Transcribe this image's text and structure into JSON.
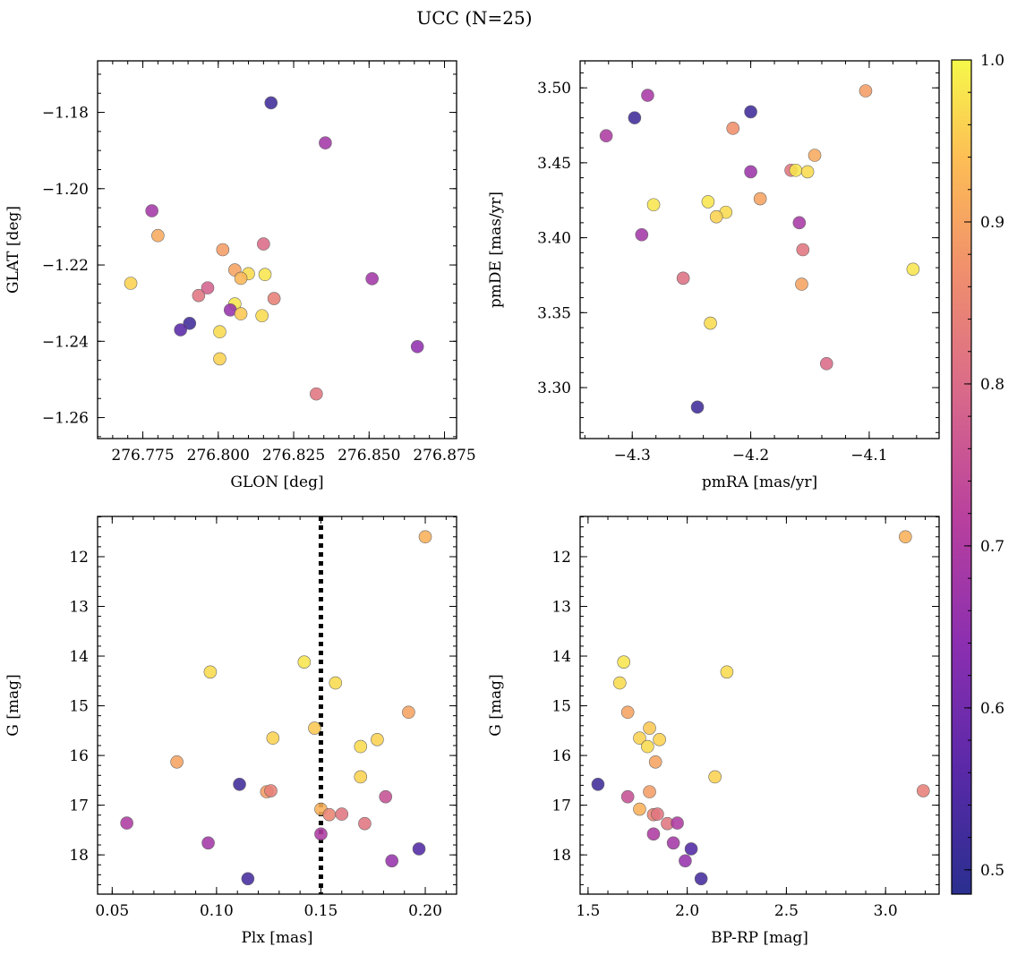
{
  "chart_data": {
    "suptitle": "UCC (N=25)",
    "colorbar": {
      "min": 0.485,
      "max": 1.0,
      "ticks": [
        0.5,
        0.6,
        0.7,
        0.8,
        0.9,
        1.0
      ],
      "tick_labels": [
        "0.5",
        "0.6",
        "0.7",
        "0.8",
        "0.9",
        "1.0"
      ],
      "colormap": "plasma"
    },
    "panels": [
      {
        "type": "scatter",
        "xlabel": "GLON [deg]",
        "ylabel": "GLAT [deg]",
        "xlim": [
          276.76,
          276.879
        ],
        "ylim": [
          -1.2655,
          -1.1665
        ],
        "y_inverted": false,
        "xticks": [
          276.775,
          276.8,
          276.825,
          276.85,
          276.875
        ],
        "xtick_labels": [
          "276.775",
          "276.800",
          "276.825",
          "276.850",
          "276.875"
        ],
        "yticks": [
          -1.26,
          -1.24,
          -1.22,
          -1.2,
          -1.18
        ],
        "ytick_labels": [
          "−1.26",
          "−1.24",
          "−1.22",
          "−1.20",
          "−1.18"
        ],
        "x_minor_step": 0.005,
        "y_minor_step": 0.005,
        "vline": null,
        "points": [
          {
            "x": 276.8175,
            "y": -1.1775,
            "c": 0.52
          },
          {
            "x": 276.8355,
            "y": -1.188,
            "c": 0.68
          },
          {
            "x": 276.778,
            "y": -1.2058,
            "c": 0.68
          },
          {
            "x": 276.78,
            "y": -1.2123,
            "c": 0.91
          },
          {
            "x": 276.8015,
            "y": -1.216,
            "c": 0.89
          },
          {
            "x": 276.815,
            "y": -1.2145,
            "c": 0.8
          },
          {
            "x": 276.8055,
            "y": -1.2213,
            "c": 0.9
          },
          {
            "x": 276.81,
            "y": -1.2223,
            "c": 0.97
          },
          {
            "x": 276.8075,
            "y": -1.2235,
            "c": 0.93
          },
          {
            "x": 276.8155,
            "y": -1.2225,
            "c": 0.98
          },
          {
            "x": 276.8185,
            "y": -1.2288,
            "c": 0.84
          },
          {
            "x": 276.771,
            "y": -1.2248,
            "c": 0.96
          },
          {
            "x": 276.7935,
            "y": -1.228,
            "c": 0.82
          },
          {
            "x": 276.7965,
            "y": -1.226,
            "c": 0.78
          },
          {
            "x": 276.8055,
            "y": -1.2302,
            "c": 0.98
          },
          {
            "x": 276.804,
            "y": -1.2318,
            "c": 0.66
          },
          {
            "x": 276.8075,
            "y": -1.2328,
            "c": 0.95
          },
          {
            "x": 276.8145,
            "y": -1.2333,
            "c": 0.97
          },
          {
            "x": 276.7905,
            "y": -1.2353,
            "c": 0.52
          },
          {
            "x": 276.7875,
            "y": -1.237,
            "c": 0.56
          },
          {
            "x": 276.8005,
            "y": -1.2375,
            "c": 0.97
          },
          {
            "x": 276.8005,
            "y": -1.2446,
            "c": 0.96
          },
          {
            "x": 276.851,
            "y": -1.2236,
            "c": 0.68
          },
          {
            "x": 276.866,
            "y": -1.2414,
            "c": 0.65
          },
          {
            "x": 276.8325,
            "y": -1.2538,
            "c": 0.82
          }
        ]
      },
      {
        "type": "scatter",
        "xlabel": "pmRA [mas/yr]",
        "ylabel": "pmDE [mas/yr]",
        "xlim": [
          -4.344,
          -4.041
        ],
        "ylim": [
          3.266,
          3.518
        ],
        "y_inverted": false,
        "xticks": [
          -4.3,
          -4.2,
          -4.1
        ],
        "xtick_labels": [
          "−4.3",
          "−4.2",
          "−4.1"
        ],
        "yticks": [
          3.3,
          3.35,
          3.4,
          3.45,
          3.5
        ],
        "ytick_labels": [
          "3.30",
          "3.35",
          "3.40",
          "3.45",
          "3.50"
        ],
        "x_minor_step": 0.02,
        "y_minor_step": 0.01,
        "vline": null,
        "points": [
          {
            "x": -4.322,
            "y": 3.468,
            "c": 0.7
          },
          {
            "x": -4.298,
            "y": 3.48,
            "c": 0.52
          },
          {
            "x": -4.287,
            "y": 3.495,
            "c": 0.69
          },
          {
            "x": -4.292,
            "y": 3.402,
            "c": 0.68
          },
          {
            "x": -4.282,
            "y": 3.422,
            "c": 0.98
          },
          {
            "x": -4.2,
            "y": 3.484,
            "c": 0.52
          },
          {
            "x": -4.215,
            "y": 3.473,
            "c": 0.87
          },
          {
            "x": -4.103,
            "y": 3.498,
            "c": 0.89
          },
          {
            "x": -4.2,
            "y": 3.444,
            "c": 0.67
          },
          {
            "x": -4.166,
            "y": 3.445,
            "c": 0.82
          },
          {
            "x": -4.162,
            "y": 3.445,
            "c": 0.98
          },
          {
            "x": -4.152,
            "y": 3.444,
            "c": 0.97
          },
          {
            "x": -4.146,
            "y": 3.455,
            "c": 0.91
          },
          {
            "x": -4.236,
            "y": 3.424,
            "c": 0.98
          },
          {
            "x": -4.221,
            "y": 3.417,
            "c": 0.97
          },
          {
            "x": -4.229,
            "y": 3.414,
            "c": 0.96
          },
          {
            "x": -4.192,
            "y": 3.426,
            "c": 0.9
          },
          {
            "x": -4.159,
            "y": 3.41,
            "c": 0.69
          },
          {
            "x": -4.156,
            "y": 3.392,
            "c": 0.82
          },
          {
            "x": -4.257,
            "y": 3.373,
            "c": 0.81
          },
          {
            "x": -4.157,
            "y": 3.369,
            "c": 0.9
          },
          {
            "x": -4.063,
            "y": 3.379,
            "c": 0.98
          },
          {
            "x": -4.234,
            "y": 3.343,
            "c": 0.97
          },
          {
            "x": -4.136,
            "y": 3.316,
            "c": 0.8
          },
          {
            "x": -4.245,
            "y": 3.287,
            "c": 0.52
          }
        ]
      },
      {
        "type": "scatter",
        "xlabel": "Plx [mas]",
        "ylabel": "G [mag]",
        "xlim": [
          0.043,
          0.215
        ],
        "ylim": [
          18.79,
          11.19
        ],
        "y_inverted": true,
        "xticks": [
          0.05,
          0.1,
          0.15,
          0.2
        ],
        "xtick_labels": [
          "0.05",
          "0.10",
          "0.15",
          "0.20"
        ],
        "yticks": [
          12,
          13,
          14,
          15,
          16,
          17,
          18
        ],
        "ytick_labels": [
          "12",
          "13",
          "14",
          "15",
          "16",
          "17",
          "18"
        ],
        "x_minor_step": 0.01,
        "y_minor_step": 0.2,
        "vline": {
          "x": 0.15,
          "style": "dotted"
        },
        "points": [
          {
            "x": 0.2,
            "y": 11.6,
            "c": 0.92
          },
          {
            "x": 0.142,
            "y": 14.12,
            "c": 0.98
          },
          {
            "x": 0.097,
            "y": 14.32,
            "c": 0.97
          },
          {
            "x": 0.157,
            "y": 14.54,
            "c": 0.97
          },
          {
            "x": 0.192,
            "y": 15.13,
            "c": 0.9
          },
          {
            "x": 0.147,
            "y": 15.45,
            "c": 0.95
          },
          {
            "x": 0.127,
            "y": 15.65,
            "c": 0.96
          },
          {
            "x": 0.177,
            "y": 15.68,
            "c": 0.96
          },
          {
            "x": 0.169,
            "y": 15.82,
            "c": 0.97
          },
          {
            "x": 0.081,
            "y": 16.13,
            "c": 0.9
          },
          {
            "x": 0.169,
            "y": 16.43,
            "c": 0.96
          },
          {
            "x": 0.111,
            "y": 16.58,
            "c": 0.52
          },
          {
            "x": 0.124,
            "y": 16.73,
            "c": 0.89
          },
          {
            "x": 0.126,
            "y": 16.71,
            "c": 0.84
          },
          {
            "x": 0.181,
            "y": 16.83,
            "c": 0.75
          },
          {
            "x": 0.15,
            "y": 17.08,
            "c": 0.92
          },
          {
            "x": 0.154,
            "y": 17.19,
            "c": 0.85
          },
          {
            "x": 0.16,
            "y": 17.18,
            "c": 0.82
          },
          {
            "x": 0.171,
            "y": 17.37,
            "c": 0.82
          },
          {
            "x": 0.057,
            "y": 17.36,
            "c": 0.7
          },
          {
            "x": 0.15,
            "y": 17.58,
            "c": 0.7
          },
          {
            "x": 0.096,
            "y": 17.76,
            "c": 0.68
          },
          {
            "x": 0.197,
            "y": 17.88,
            "c": 0.55
          },
          {
            "x": 0.184,
            "y": 18.12,
            "c": 0.66
          },
          {
            "x": 0.115,
            "y": 18.48,
            "c": 0.53
          }
        ]
      },
      {
        "type": "scatter",
        "xlabel": "BP-RP [mag]",
        "ylabel": "G [mag]",
        "xlim": [
          1.46,
          3.27
        ],
        "ylim": [
          18.79,
          11.19
        ],
        "y_inverted": true,
        "xticks": [
          1.5,
          2.0,
          2.5,
          3.0
        ],
        "xtick_labels": [
          "1.5",
          "2.0",
          "2.5",
          "3.0"
        ],
        "yticks": [
          12,
          13,
          14,
          15,
          16,
          17,
          18
        ],
        "ytick_labels": [
          "12",
          "13",
          "14",
          "15",
          "16",
          "17",
          "18"
        ],
        "x_minor_step": 0.1,
        "y_minor_step": 0.2,
        "vline": null,
        "points": [
          {
            "x": 3.1,
            "y": 11.6,
            "c": 0.92
          },
          {
            "x": 1.68,
            "y": 14.12,
            "c": 0.98
          },
          {
            "x": 2.2,
            "y": 14.32,
            "c": 0.97
          },
          {
            "x": 1.66,
            "y": 14.54,
            "c": 0.97
          },
          {
            "x": 1.7,
            "y": 15.13,
            "c": 0.9
          },
          {
            "x": 1.81,
            "y": 15.45,
            "c": 0.95
          },
          {
            "x": 1.76,
            "y": 15.65,
            "c": 0.96
          },
          {
            "x": 1.86,
            "y": 15.68,
            "c": 0.96
          },
          {
            "x": 1.8,
            "y": 15.82,
            "c": 0.97
          },
          {
            "x": 1.84,
            "y": 16.13,
            "c": 0.9
          },
          {
            "x": 2.14,
            "y": 16.43,
            "c": 0.96
          },
          {
            "x": 1.55,
            "y": 16.58,
            "c": 0.52
          },
          {
            "x": 1.81,
            "y": 16.73,
            "c": 0.89
          },
          {
            "x": 3.19,
            "y": 16.71,
            "c": 0.84
          },
          {
            "x": 1.7,
            "y": 16.83,
            "c": 0.75
          },
          {
            "x": 1.76,
            "y": 17.08,
            "c": 0.92
          },
          {
            "x": 1.83,
            "y": 17.19,
            "c": 0.85
          },
          {
            "x": 1.85,
            "y": 17.18,
            "c": 0.82
          },
          {
            "x": 1.9,
            "y": 17.37,
            "c": 0.82
          },
          {
            "x": 1.95,
            "y": 17.36,
            "c": 0.7
          },
          {
            "x": 1.83,
            "y": 17.58,
            "c": 0.7
          },
          {
            "x": 1.93,
            "y": 17.76,
            "c": 0.68
          },
          {
            "x": 2.02,
            "y": 17.88,
            "c": 0.55
          },
          {
            "x": 1.99,
            "y": 18.12,
            "c": 0.66
          },
          {
            "x": 2.07,
            "y": 18.48,
            "c": 0.53
          }
        ]
      }
    ]
  }
}
